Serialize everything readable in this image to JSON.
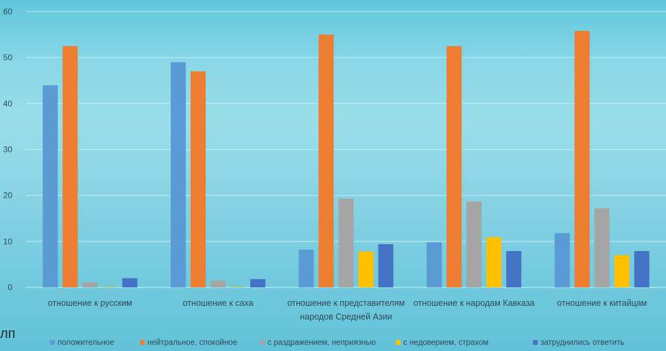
{
  "stray_text": "лп",
  "chart_data": {
    "type": "bar",
    "title": "",
    "xlabel": "",
    "ylabel": "",
    "ylim": [
      0,
      60
    ],
    "yticks": [
      0,
      10,
      20,
      30,
      40,
      50,
      60
    ],
    "grid": true,
    "legend_position": "bottom",
    "categories": [
      [
        "отношение к русским"
      ],
      [
        "отношение к саха"
      ],
      [
        "отношение к представителям",
        "народов Средней Азии"
      ],
      [
        "отношение к народам Кавказа"
      ],
      [
        "отношение к китайцам"
      ]
    ],
    "series": [
      {
        "name": "положительное",
        "color": "#5b9bd5",
        "values": [
          44,
          49,
          8.2,
          9.8,
          11.8
        ]
      },
      {
        "name": "нейтральное, спокойное",
        "color": "#ed7d31",
        "values": [
          52.5,
          47,
          55,
          52.5,
          55.8
        ]
      },
      {
        "name": "с раздражением, неприязнью",
        "color": "#a5a5a5",
        "values": [
          1.1,
          1.5,
          19.3,
          18.7,
          17.2
        ]
      },
      {
        "name": "с недоверием, страхом",
        "color": "#ffc000",
        "values": [
          0.1,
          0.1,
          7.8,
          10.9,
          7.0
        ]
      },
      {
        "name": "затруднились ответить",
        "color": "#4472c4",
        "values": [
          2.0,
          1.8,
          9.4,
          7.9,
          7.9
        ]
      }
    ]
  }
}
